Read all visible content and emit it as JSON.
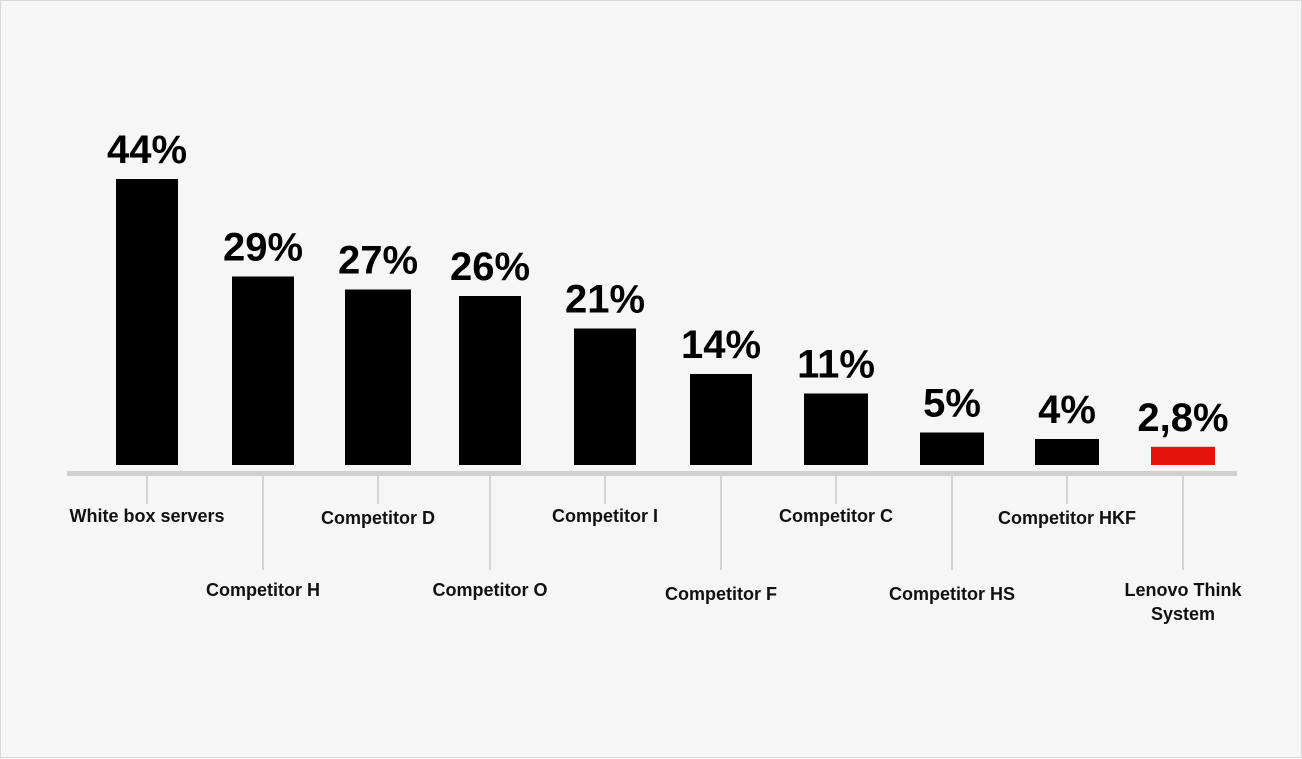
{
  "chart_data": {
    "type": "bar",
    "categories": [
      [
        "White box servers"
      ],
      [
        "Competitor H"
      ],
      [
        "Competitor D"
      ],
      [
        "Competitor O"
      ],
      [
        "Competitor I"
      ],
      [
        "Competitor F"
      ],
      [
        "Competitor C"
      ],
      [
        "Competitor HS"
      ],
      [
        "Competitor HKF"
      ],
      [
        "Lenovo Think",
        "System"
      ]
    ],
    "values": [
      44,
      29,
      27,
      26,
      21,
      14,
      11,
      5,
      4,
      2.8
    ],
    "value_labels": [
      "44%",
      "29%",
      "27%",
      "26%",
      "21%",
      "14%",
      "11%",
      "5%",
      "4%",
      "2,8%"
    ],
    "ylim": [
      0,
      44
    ],
    "grid": false,
    "legend": "none",
    "colors": {
      "bar": "#000000",
      "highlight": "#e3120b",
      "axis": "#d0d0d0",
      "tick": "#bdbdbd"
    },
    "highlight_index": 9
  }
}
